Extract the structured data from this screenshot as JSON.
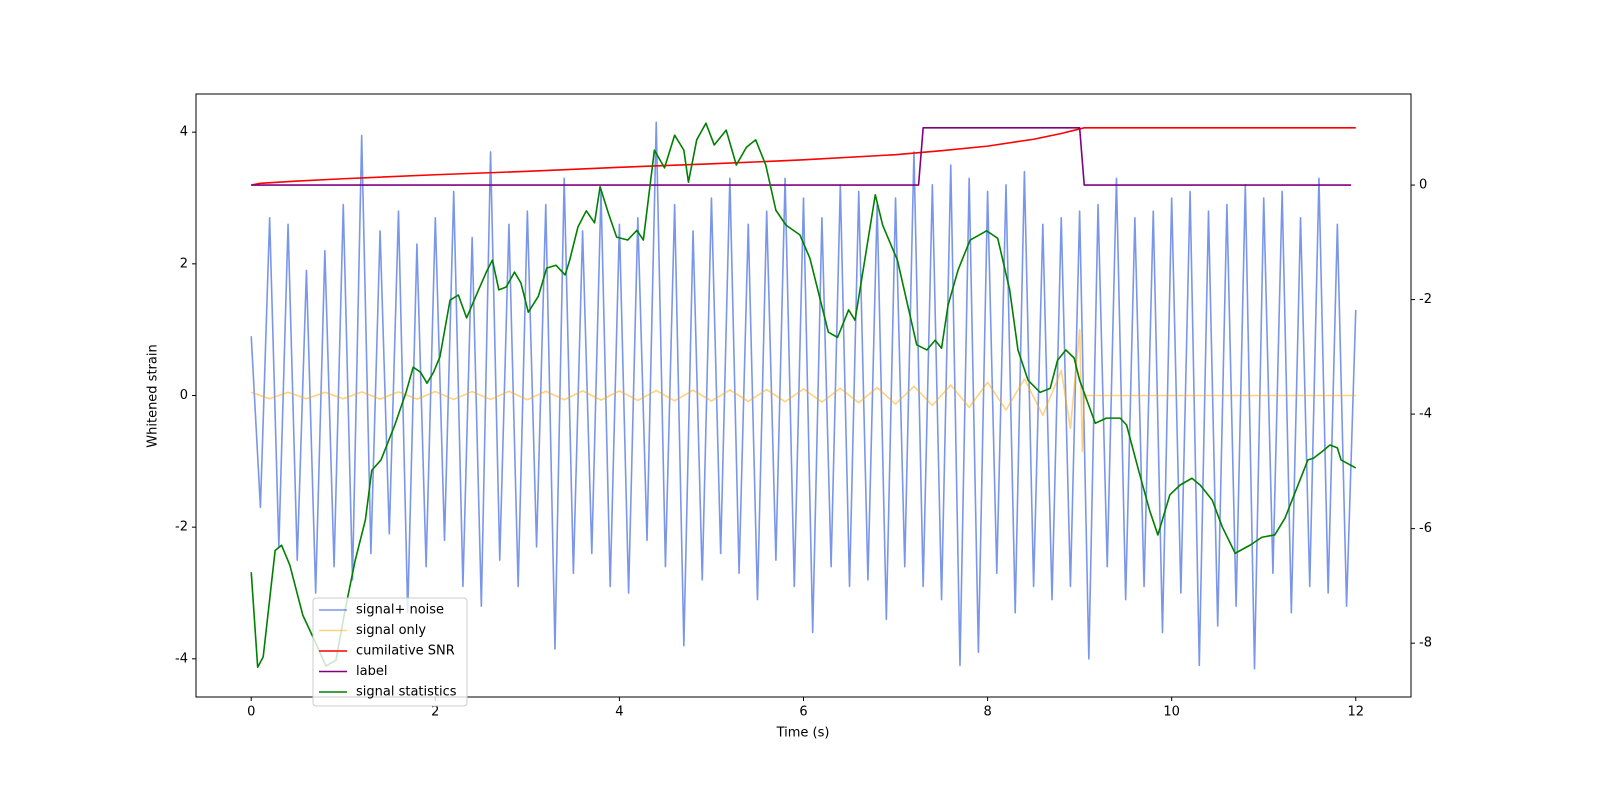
{
  "chart_data": {
    "type": "line",
    "xlabel": "Time (s)",
    "ylabel": "Whitened strain",
    "xlim": [
      -0.6,
      12.6
    ],
    "xticks": [
      0,
      2,
      4,
      6,
      8,
      10,
      12
    ],
    "ylim": [
      -4.58,
      4.58
    ],
    "yticks": [
      -4,
      -2,
      0,
      2,
      4
    ],
    "y2lim": [
      -8.94,
      1.59
    ],
    "y2ticks": [
      -8,
      -6,
      -4,
      -2,
      0
    ],
    "legend": "lower left",
    "series": [
      {
        "name": "signal+ noise",
        "color": "royalblue",
        "opacity": 0.7,
        "axis": "y",
        "x": [
          0,
          0.1,
          0.2,
          0.3,
          0.4,
          0.5,
          0.6,
          0.7,
          0.8,
          0.9,
          1,
          1.1,
          1.2,
          1.3,
          1.4,
          1.5,
          1.6,
          1.7,
          1.8,
          1.9,
          2,
          2.1,
          2.2,
          2.3,
          2.4,
          2.5,
          2.6,
          2.7,
          2.8,
          2.9,
          3,
          3.1,
          3.2,
          3.3,
          3.4,
          3.5,
          3.6,
          3.7,
          3.8,
          3.9,
          4,
          4.1,
          4.2,
          4.3,
          4.4,
          4.5,
          4.6,
          4.7,
          4.8,
          4.9,
          5,
          5.1,
          5.2,
          5.3,
          5.4,
          5.5,
          5.6,
          5.7,
          5.8,
          5.9,
          6,
          6.1,
          6.2,
          6.3,
          6.4,
          6.5,
          6.6,
          6.7,
          6.8,
          6.9,
          7,
          7.1,
          7.2,
          7.3,
          7.4,
          7.5,
          7.6,
          7.7,
          7.8,
          7.9,
          8,
          8.1,
          8.2,
          8.3,
          8.4,
          8.5,
          8.6,
          8.7,
          8.8,
          8.9,
          9,
          9.1,
          9.2,
          9.3,
          9.4,
          9.5,
          9.6,
          9.7,
          9.8,
          9.9,
          10,
          10.1,
          10.2,
          10.3,
          10.4,
          10.5,
          10.6,
          10.7,
          10.8,
          10.9,
          11,
          11.1,
          11.2,
          11.3,
          11.4,
          11.5,
          11.6,
          11.7,
          11.8,
          11.9,
          12
        ],
        "values": [
          0.9,
          -1.7,
          2.7,
          -2.3,
          2.6,
          -2.5,
          1.9,
          -3.0,
          2.2,
          -2.6,
          2.9,
          -2.8,
          3.95,
          -2.4,
          2.5,
          -2.1,
          2.8,
          -3.3,
          2.3,
          -2.6,
          2.7,
          -2.2,
          3.1,
          -2.9,
          2.4,
          -3.2,
          3.7,
          -2.5,
          2.6,
          -2.9,
          2.8,
          -2.3,
          2.9,
          -3.85,
          3.3,
          -2.7,
          2.5,
          -2.4,
          3.1,
          -2.9,
          2.6,
          -3.0,
          2.7,
          -2.2,
          4.15,
          -2.6,
          2.9,
          -3.8,
          2.5,
          -2.8,
          3.0,
          -2.4,
          3.3,
          -2.7,
          2.6,
          -3.1,
          2.8,
          -2.5,
          3.3,
          -2.9,
          3.0,
          -3.6,
          2.7,
          -2.6,
          3.2,
          -2.9,
          3.1,
          -2.8,
          2.9,
          -3.4,
          3.0,
          -2.6,
          3.7,
          -2.9,
          3.2,
          -3.1,
          3.5,
          -4.1,
          3.3,
          -3.9,
          3.1,
          -2.7,
          3.2,
          -3.3,
          3.4,
          -2.9,
          2.6,
          -3.1,
          2.7,
          -2.9,
          2.8,
          -4.0,
          2.9,
          -2.6,
          3.3,
          -3.1,
          2.7,
          -2.9,
          2.8,
          -3.6,
          3.0,
          -3.0,
          3.1,
          -4.1,
          2.8,
          -3.5,
          2.9,
          -3.2,
          3.2,
          -4.15,
          3.0,
          -2.7,
          3.1,
          -3.3,
          2.7,
          -2.9,
          3.3,
          -3.0,
          2.6,
          -3.2,
          1.3
        ]
      },
      {
        "name": "signal only",
        "color": "orange",
        "opacity": 0.5,
        "axis": "y",
        "x": [
          0,
          0.2,
          0.4,
          0.6,
          0.8,
          1,
          1.2,
          1.4,
          1.6,
          1.8,
          2,
          2.2,
          2.4,
          2.6,
          2.8,
          3,
          3.2,
          3.4,
          3.6,
          3.8,
          4,
          4.2,
          4.4,
          4.6,
          4.8,
          5,
          5.2,
          5.4,
          5.6,
          5.8,
          6,
          6.2,
          6.4,
          6.6,
          6.8,
          7,
          7.2,
          7.4,
          7.6,
          7.8,
          8,
          8.2,
          8.4,
          8.6,
          8.8,
          8.9,
          9,
          9.03,
          9.05,
          12
        ],
        "values": [
          0.05,
          -0.05,
          0.05,
          -0.05,
          0.05,
          -0.05,
          0.055,
          -0.055,
          0.055,
          -0.055,
          0.06,
          -0.06,
          0.06,
          -0.06,
          0.065,
          -0.065,
          0.065,
          -0.065,
          0.07,
          -0.07,
          0.07,
          -0.075,
          0.075,
          -0.08,
          0.08,
          -0.085,
          0.085,
          -0.09,
          0.09,
          -0.095,
          0.1,
          -0.1,
          0.11,
          -0.11,
          0.12,
          -0.13,
          0.14,
          -0.15,
          0.16,
          -0.18,
          0.2,
          -0.22,
          0.25,
          -0.3,
          0.38,
          -0.5,
          1.0,
          -0.85,
          0,
          0
        ]
      },
      {
        "name": "cumilative SNR",
        "color": "red",
        "opacity": 1,
        "axis": "y2",
        "x": [
          0,
          0.1,
          0.5,
          1,
          2,
          3,
          4,
          5,
          6,
          7,
          7.5,
          8,
          8.5,
          8.8,
          9,
          9.05,
          12
        ],
        "values": [
          0.0,
          0.03,
          0.07,
          0.11,
          0.18,
          0.24,
          0.31,
          0.37,
          0.44,
          0.53,
          0.6,
          0.68,
          0.8,
          0.9,
          0.98,
          1.0,
          1.0
        ]
      },
      {
        "name": "label",
        "color": "purple",
        "opacity": 1,
        "axis": "y2",
        "x": [
          0,
          7.25,
          7.3,
          9.0,
          9.05,
          11.95
        ],
        "values": [
          0,
          0,
          1,
          1,
          0,
          0
        ]
      },
      {
        "name": "signal statistics",
        "color": "green",
        "opacity": 1,
        "axis": "y2",
        "x": [
          0,
          0.07,
          0.13,
          0.26,
          0.33,
          0.42,
          0.56,
          0.71,
          0.81,
          0.92,
          1.02,
          1.13,
          1.24,
          1.31,
          1.41,
          1.56,
          1.68,
          1.76,
          1.84,
          1.91,
          1.98,
          2.05,
          2.16,
          2.25,
          2.34,
          2.47,
          2.56,
          2.62,
          2.69,
          2.77,
          2.86,
          2.93,
          3.01,
          3.12,
          3.21,
          3.31,
          3.41,
          3.46,
          3.55,
          3.64,
          3.73,
          3.79,
          3.88,
          3.97,
          4.09,
          4.19,
          4.26,
          4.38,
          4.49,
          4.6,
          4.7,
          4.75,
          4.84,
          4.94,
          5.03,
          5.16,
          5.27,
          5.38,
          5.48,
          5.59,
          5.7,
          5.81,
          5.96,
          6.07,
          6.27,
          6.37,
          6.49,
          6.56,
          6.78,
          6.86,
          7.02,
          7.23,
          7.34,
          7.43,
          7.5,
          7.57,
          7.68,
          7.81,
          7.99,
          8.11,
          8.24,
          8.33,
          8.44,
          8.57,
          8.68,
          8.76,
          8.85,
          8.94,
          9.0,
          9.17,
          9.29,
          9.44,
          9.51,
          9.64,
          9.76,
          9.85,
          9.98,
          10.09,
          10.22,
          10.31,
          10.44,
          10.55,
          10.69,
          10.85,
          10.98,
          11.12,
          11.23,
          11.35,
          11.48,
          11.54,
          11.63,
          11.72,
          11.8,
          11.84,
          12.0
        ],
        "values": [
          -6.76,
          -8.42,
          -8.24,
          -6.38,
          -6.29,
          -6.64,
          -7.51,
          -8.03,
          -8.4,
          -8.3,
          -7.42,
          -6.55,
          -5.85,
          -4.98,
          -4.8,
          -4.19,
          -3.63,
          -3.18,
          -3.27,
          -3.46,
          -3.27,
          -3.0,
          -2.01,
          -1.92,
          -2.32,
          -1.83,
          -1.5,
          -1.31,
          -1.83,
          -1.78,
          -1.52,
          -1.71,
          -2.22,
          -1.94,
          -1.45,
          -1.4,
          -1.57,
          -1.31,
          -0.73,
          -0.45,
          -0.66,
          -0.03,
          -0.49,
          -0.91,
          -0.96,
          -0.79,
          -0.96,
          0.61,
          0.3,
          0.87,
          0.61,
          0.05,
          0.79,
          1.08,
          0.7,
          0.96,
          0.35,
          0.66,
          0.79,
          0.35,
          -0.44,
          -0.7,
          -0.87,
          -1.28,
          -2.57,
          -2.66,
          -2.18,
          -2.36,
          -0.17,
          -0.7,
          -1.31,
          -2.79,
          -2.88,
          -2.71,
          -2.85,
          -2.1,
          -1.48,
          -0.96,
          -0.8,
          -0.93,
          -1.83,
          -2.88,
          -3.41,
          -3.62,
          -3.55,
          -3.06,
          -2.88,
          -3.02,
          -3.41,
          -4.16,
          -4.07,
          -4.07,
          -4.19,
          -4.98,
          -5.68,
          -6.11,
          -5.41,
          -5.24,
          -5.12,
          -5.24,
          -5.5,
          -5.97,
          -6.43,
          -6.29,
          -6.15,
          -6.11,
          -5.82,
          -5.33,
          -4.8,
          -4.77,
          -4.66,
          -4.54,
          -4.59,
          -4.8,
          -4.94
        ]
      }
    ]
  }
}
